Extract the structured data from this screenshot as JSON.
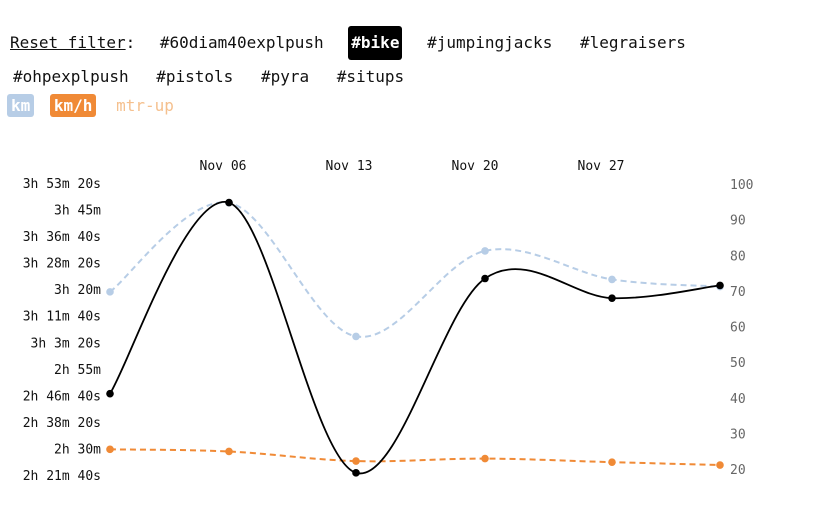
{
  "filter": {
    "reset_label": "Reset filter",
    "separator": ":",
    "tags": [
      {
        "label": "#60diam40explpush",
        "active": false
      },
      {
        "label": "#bike",
        "active": true
      },
      {
        "label": "#jumpingjacks",
        "active": false
      },
      {
        "label": "#legraisers",
        "active": false
      },
      {
        "label": "#ohpexplpush",
        "active": false
      },
      {
        "label": "#pistols",
        "active": false
      },
      {
        "label": "#pyra",
        "active": false
      },
      {
        "label": "#situps",
        "active": false
      }
    ]
  },
  "series_toggles": [
    {
      "label": "km",
      "state": "on"
    },
    {
      "label": "km/h",
      "state": "on"
    },
    {
      "label": "mtr-up",
      "state": "off"
    }
  ],
  "chart_data": {
    "type": "line",
    "x_tick_labels": [
      "Nov 06",
      "Nov 13",
      "Nov 20",
      "Nov 27"
    ],
    "x": [
      "Oct 30",
      "Nov 06",
      "Nov 13",
      "Nov 20",
      "Nov 27",
      "Dec 04"
    ],
    "y_left": {
      "tick_labels": [
        "3h 53m 20s",
        "3h 45m",
        "3h 36m 40s",
        "3h 28m 20s",
        "3h 20m",
        "3h 11m 40s",
        "3h 3m 20s",
        "2h 55m",
        "2h 46m 40s",
        "2h 38m 20s",
        "2h 30m",
        "2h 21m 40s"
      ],
      "range_seconds": [
        8500,
        14000
      ]
    },
    "y_right": {
      "tick_labels": [
        "100",
        "90",
        "80",
        "70",
        "60",
        "50",
        "40",
        "30",
        "20"
      ],
      "range": [
        20,
        100
      ]
    },
    "series": [
      {
        "axis": "left",
        "color": "#000000",
        "dash": false,
        "values_seconds": [
          10050,
          13650,
          8560,
          12220,
          11850,
          12090
        ]
      },
      {
        "axis": "right",
        "color": "#b7cde6",
        "dash": true,
        "values": [
          70.0,
          95.0,
          57.5,
          81.5,
          73.5,
          71.5
        ]
      },
      {
        "axis": "right",
        "color": "#f08a36",
        "dash": true,
        "values": [
          25.8,
          25.2,
          22.5,
          23.2,
          22.2,
          21.4
        ]
      }
    ]
  }
}
